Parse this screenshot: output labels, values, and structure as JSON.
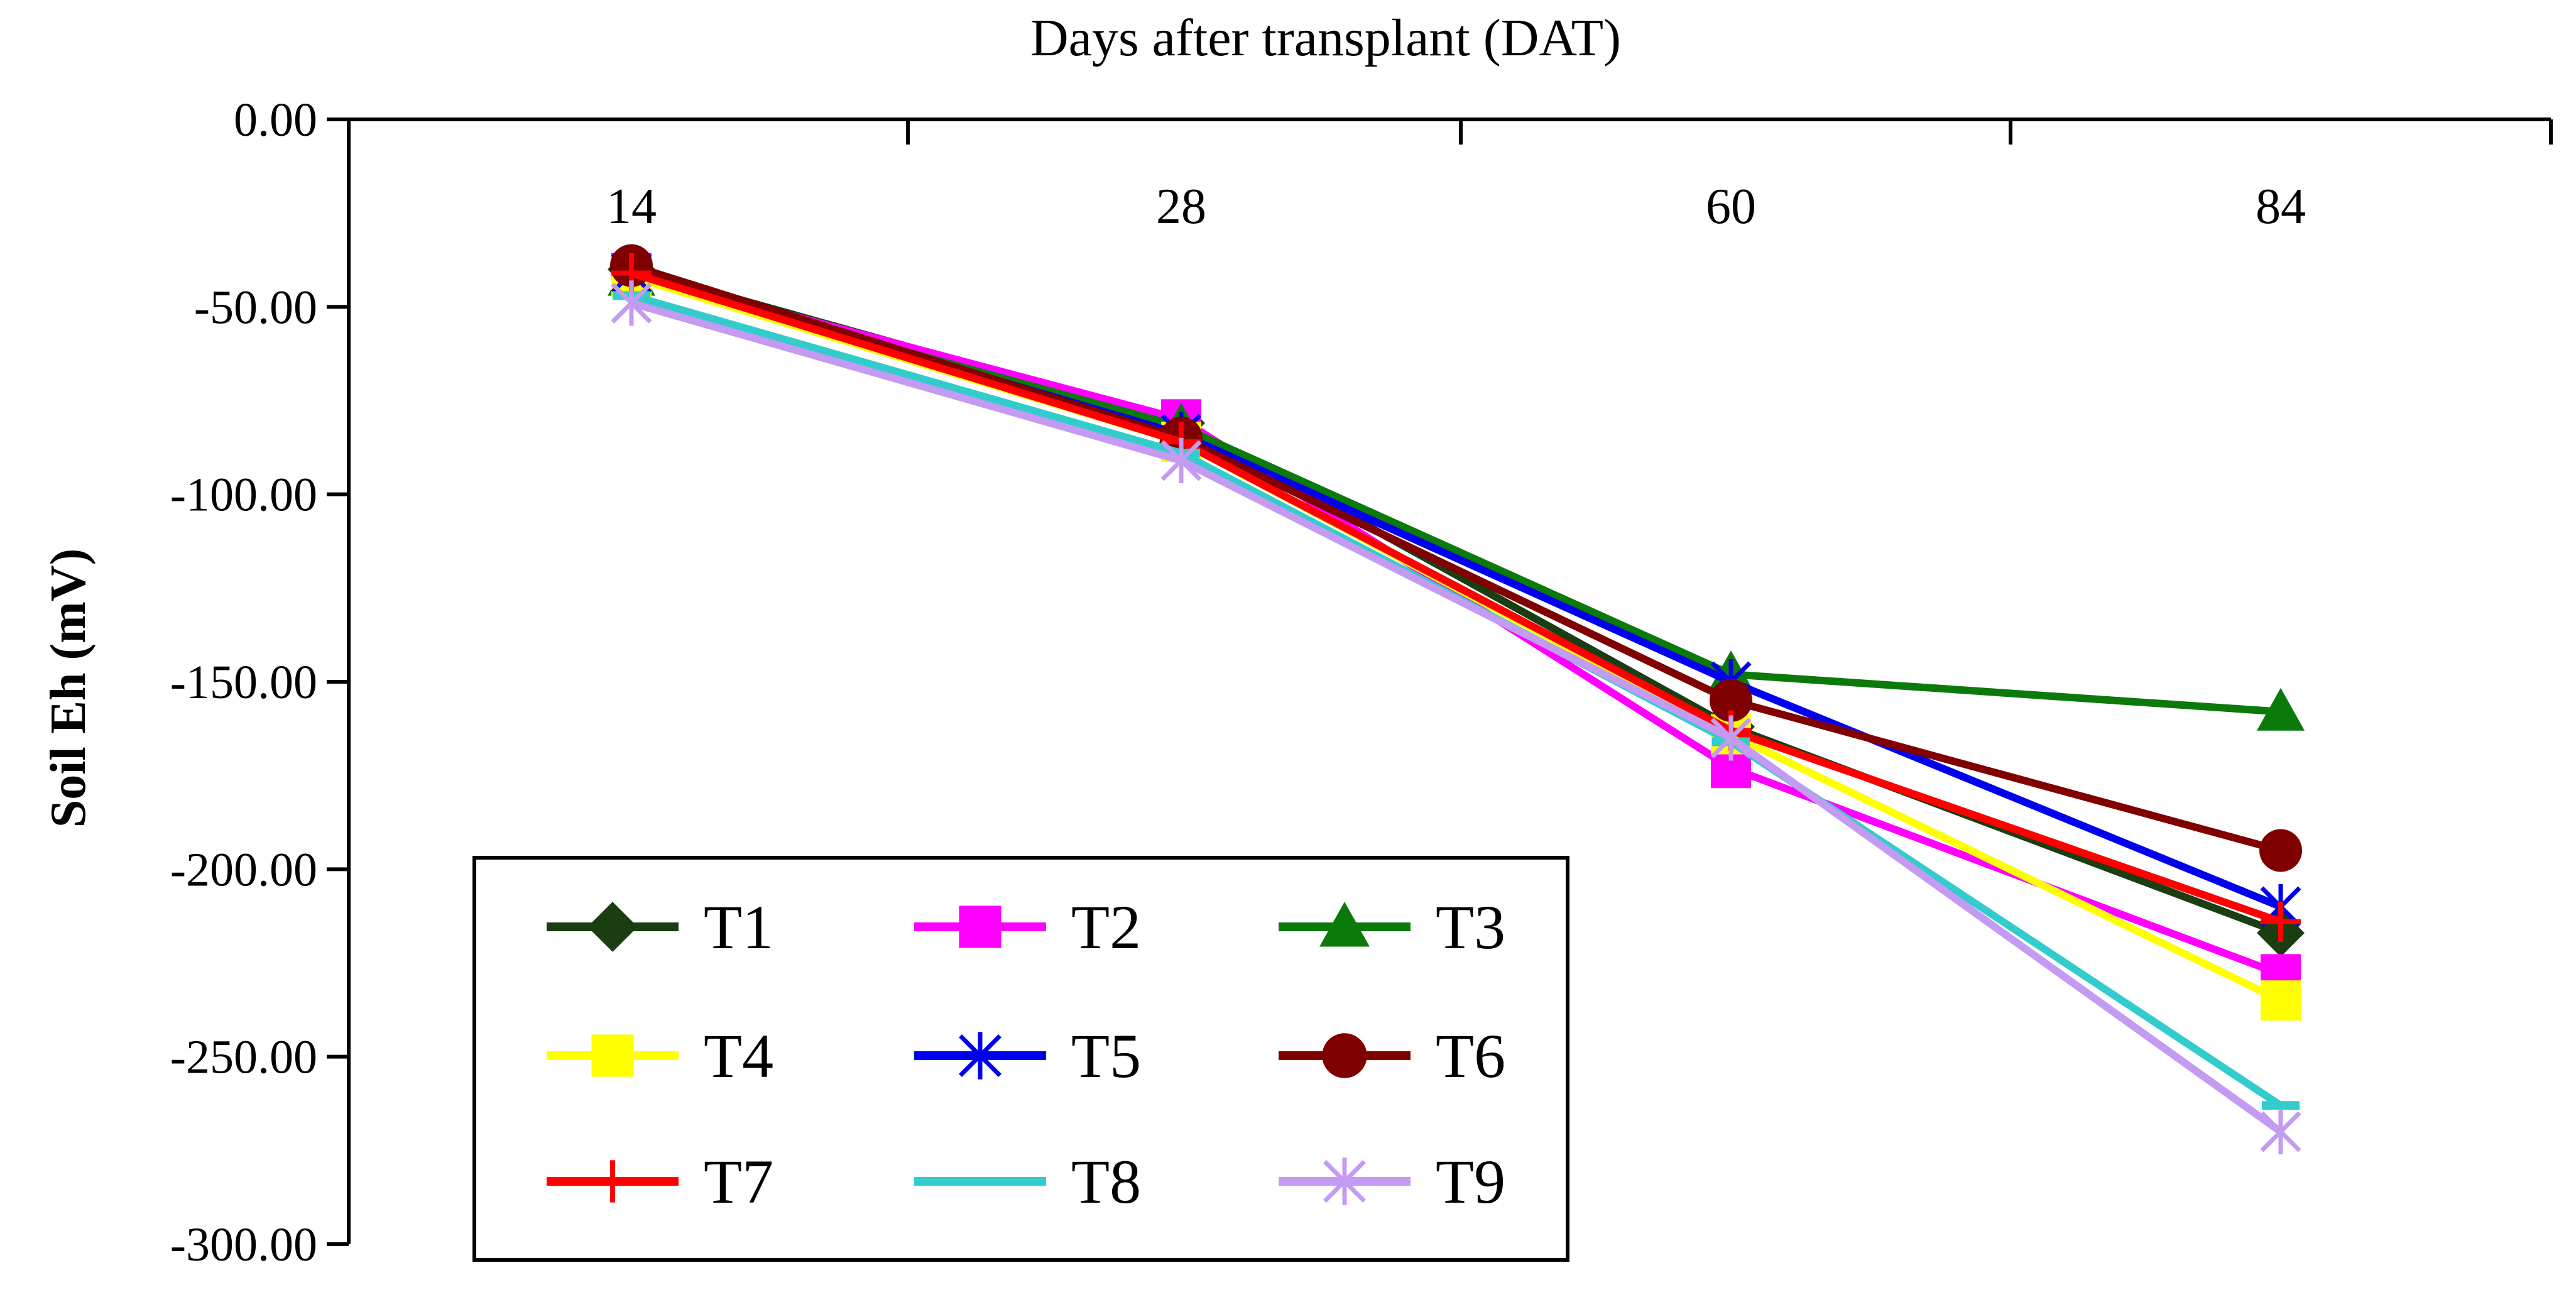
{
  "chart_data": {
    "type": "line",
    "title": "",
    "xlabel": "Days after transplant (DAT)",
    "ylabel": "Soil Eh (mV)",
    "x_position": "top",
    "categories": [
      "14",
      "28",
      "60",
      "84"
    ],
    "ylim": [
      -300,
      0
    ],
    "yticks": [
      0,
      -50,
      -100,
      -150,
      -200,
      -250,
      -300
    ],
    "ytick_labels": [
      "0.00",
      "-50.00",
      "-100.00",
      "-150.00",
      "-200.00",
      "-250.00",
      "-300.00"
    ],
    "grid": false,
    "legend_position": "bottom-left",
    "legend_columns": 3,
    "series": [
      {
        "name": "T1",
        "values": [
          -40,
          -81,
          -162,
          -217
        ],
        "color": "#1a3d12",
        "marker": "diamond"
      },
      {
        "name": "T2",
        "values": [
          -41,
          -80,
          -173,
          -228
        ],
        "color": "#ff00ff",
        "marker": "square"
      },
      {
        "name": "T3",
        "values": [
          -42,
          -82,
          -148,
          -158
        ],
        "color": "#0b7a0b",
        "marker": "triangle"
      },
      {
        "name": "T4",
        "values": [
          -42,
          -86,
          -164,
          -235
        ],
        "color": "#ffff00",
        "marker": "square"
      },
      {
        "name": "T5",
        "values": [
          -41,
          -84,
          -150,
          -210
        ],
        "color": "#0000ee",
        "marker": "star"
      },
      {
        "name": "T6",
        "values": [
          -39,
          -85,
          -155,
          -195
        ],
        "color": "#800000",
        "marker": "circle"
      },
      {
        "name": "T7",
        "values": [
          -41,
          -86,
          -163,
          -214
        ],
        "color": "#ff0000",
        "marker": "plus"
      },
      {
        "name": "T8",
        "values": [
          -47,
          -89,
          -166,
          -263
        ],
        "color": "#33cccc",
        "marker": "dash"
      },
      {
        "name": "T9",
        "values": [
          -49,
          -91,
          -165,
          -270
        ],
        "color": "#c39bf2",
        "marker": "star"
      }
    ]
  }
}
